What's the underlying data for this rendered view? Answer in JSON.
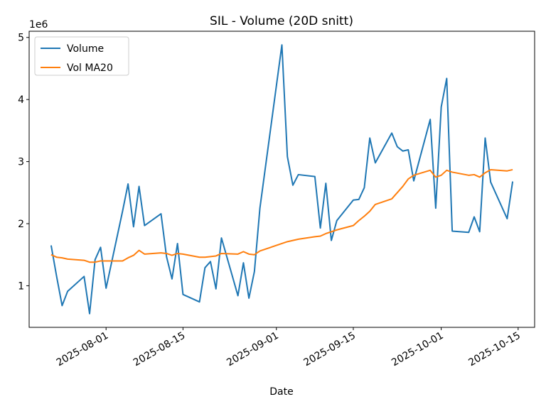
{
  "chart_data": {
    "type": "line",
    "title": "SIL - Volume (20D snitt)",
    "xlabel": "Date",
    "y_offset_label": "1e6",
    "x": [
      "2025-07-22",
      "2025-07-23",
      "2025-07-24",
      "2025-07-25",
      "2025-07-28",
      "2025-07-29",
      "2025-07-30",
      "2025-07-31",
      "2025-08-01",
      "2025-08-04",
      "2025-08-05",
      "2025-08-06",
      "2025-08-07",
      "2025-08-08",
      "2025-08-11",
      "2025-08-12",
      "2025-08-13",
      "2025-08-14",
      "2025-08-15",
      "2025-08-18",
      "2025-08-19",
      "2025-08-20",
      "2025-08-21",
      "2025-08-22",
      "2025-08-25",
      "2025-08-26",
      "2025-08-27",
      "2025-08-28",
      "2025-08-29",
      "2025-09-02",
      "2025-09-03",
      "2025-09-04",
      "2025-09-05",
      "2025-09-08",
      "2025-09-09",
      "2025-09-10",
      "2025-09-11",
      "2025-09-12",
      "2025-09-15",
      "2025-09-16",
      "2025-09-17",
      "2025-09-18",
      "2025-09-19",
      "2025-09-22",
      "2025-09-23",
      "2025-09-24",
      "2025-09-25",
      "2025-09-26",
      "2025-09-29",
      "2025-09-30",
      "2025-10-01",
      "2025-10-02",
      "2025-10-03",
      "2025-10-06",
      "2025-10-07",
      "2025-10-08",
      "2025-10-09",
      "2025-10-10",
      "2025-10-13",
      "2025-10-14"
    ],
    "series": [
      {
        "name": "Volume",
        "color": "#1f77b4",
        "values": [
          1.65,
          1.15,
          0.68,
          0.91,
          1.15,
          0.55,
          1.42,
          1.62,
          0.96,
          2.2,
          2.64,
          1.95,
          2.6,
          1.97,
          2.16,
          1.47,
          1.11,
          1.68,
          0.86,
          0.74,
          1.29,
          1.39,
          0.95,
          1.77,
          0.84,
          1.37,
          0.8,
          1.23,
          2.25,
          4.88,
          3.08,
          2.62,
          2.79,
          2.76,
          1.93,
          2.65,
          1.73,
          2.05,
          2.38,
          2.39,
          2.58,
          3.38,
          2.98,
          3.46,
          3.24,
          3.17,
          3.19,
          2.69,
          3.68,
          2.25,
          3.88,
          4.34,
          1.88,
          1.86,
          2.11,
          1.87,
          3.38,
          2.67,
          2.08,
          2.68
        ]
      },
      {
        "name": "Vol MA20",
        "color": "#ff7f0e",
        "values": [
          1.5,
          1.46,
          1.45,
          1.43,
          1.41,
          1.38,
          1.38,
          1.4,
          1.4,
          1.4,
          1.45,
          1.49,
          1.57,
          1.51,
          1.53,
          1.52,
          1.49,
          1.52,
          1.51,
          1.46,
          1.46,
          1.47,
          1.48,
          1.52,
          1.51,
          1.55,
          1.51,
          1.5,
          1.56,
          1.68,
          1.71,
          1.73,
          1.75,
          1.79,
          1.8,
          1.84,
          1.87,
          1.9,
          1.97,
          2.05,
          2.12,
          2.2,
          2.31,
          2.4,
          2.5,
          2.6,
          2.72,
          2.78,
          2.86,
          2.75,
          2.78,
          2.86,
          2.83,
          2.78,
          2.79,
          2.75,
          2.82,
          2.87,
          2.85,
          2.87
        ]
      }
    ],
    "xlim": [
      "2025-07-18",
      "2025-10-18"
    ],
    "xticks": [
      "2025-08-01",
      "2025-08-15",
      "2025-09-01",
      "2025-09-15",
      "2025-10-01",
      "2025-10-15"
    ],
    "ylim": [
      0.33,
      5.1
    ],
    "yticks": [
      1,
      2,
      3,
      4,
      5
    ],
    "legend": "upper left",
    "grid": false
  }
}
